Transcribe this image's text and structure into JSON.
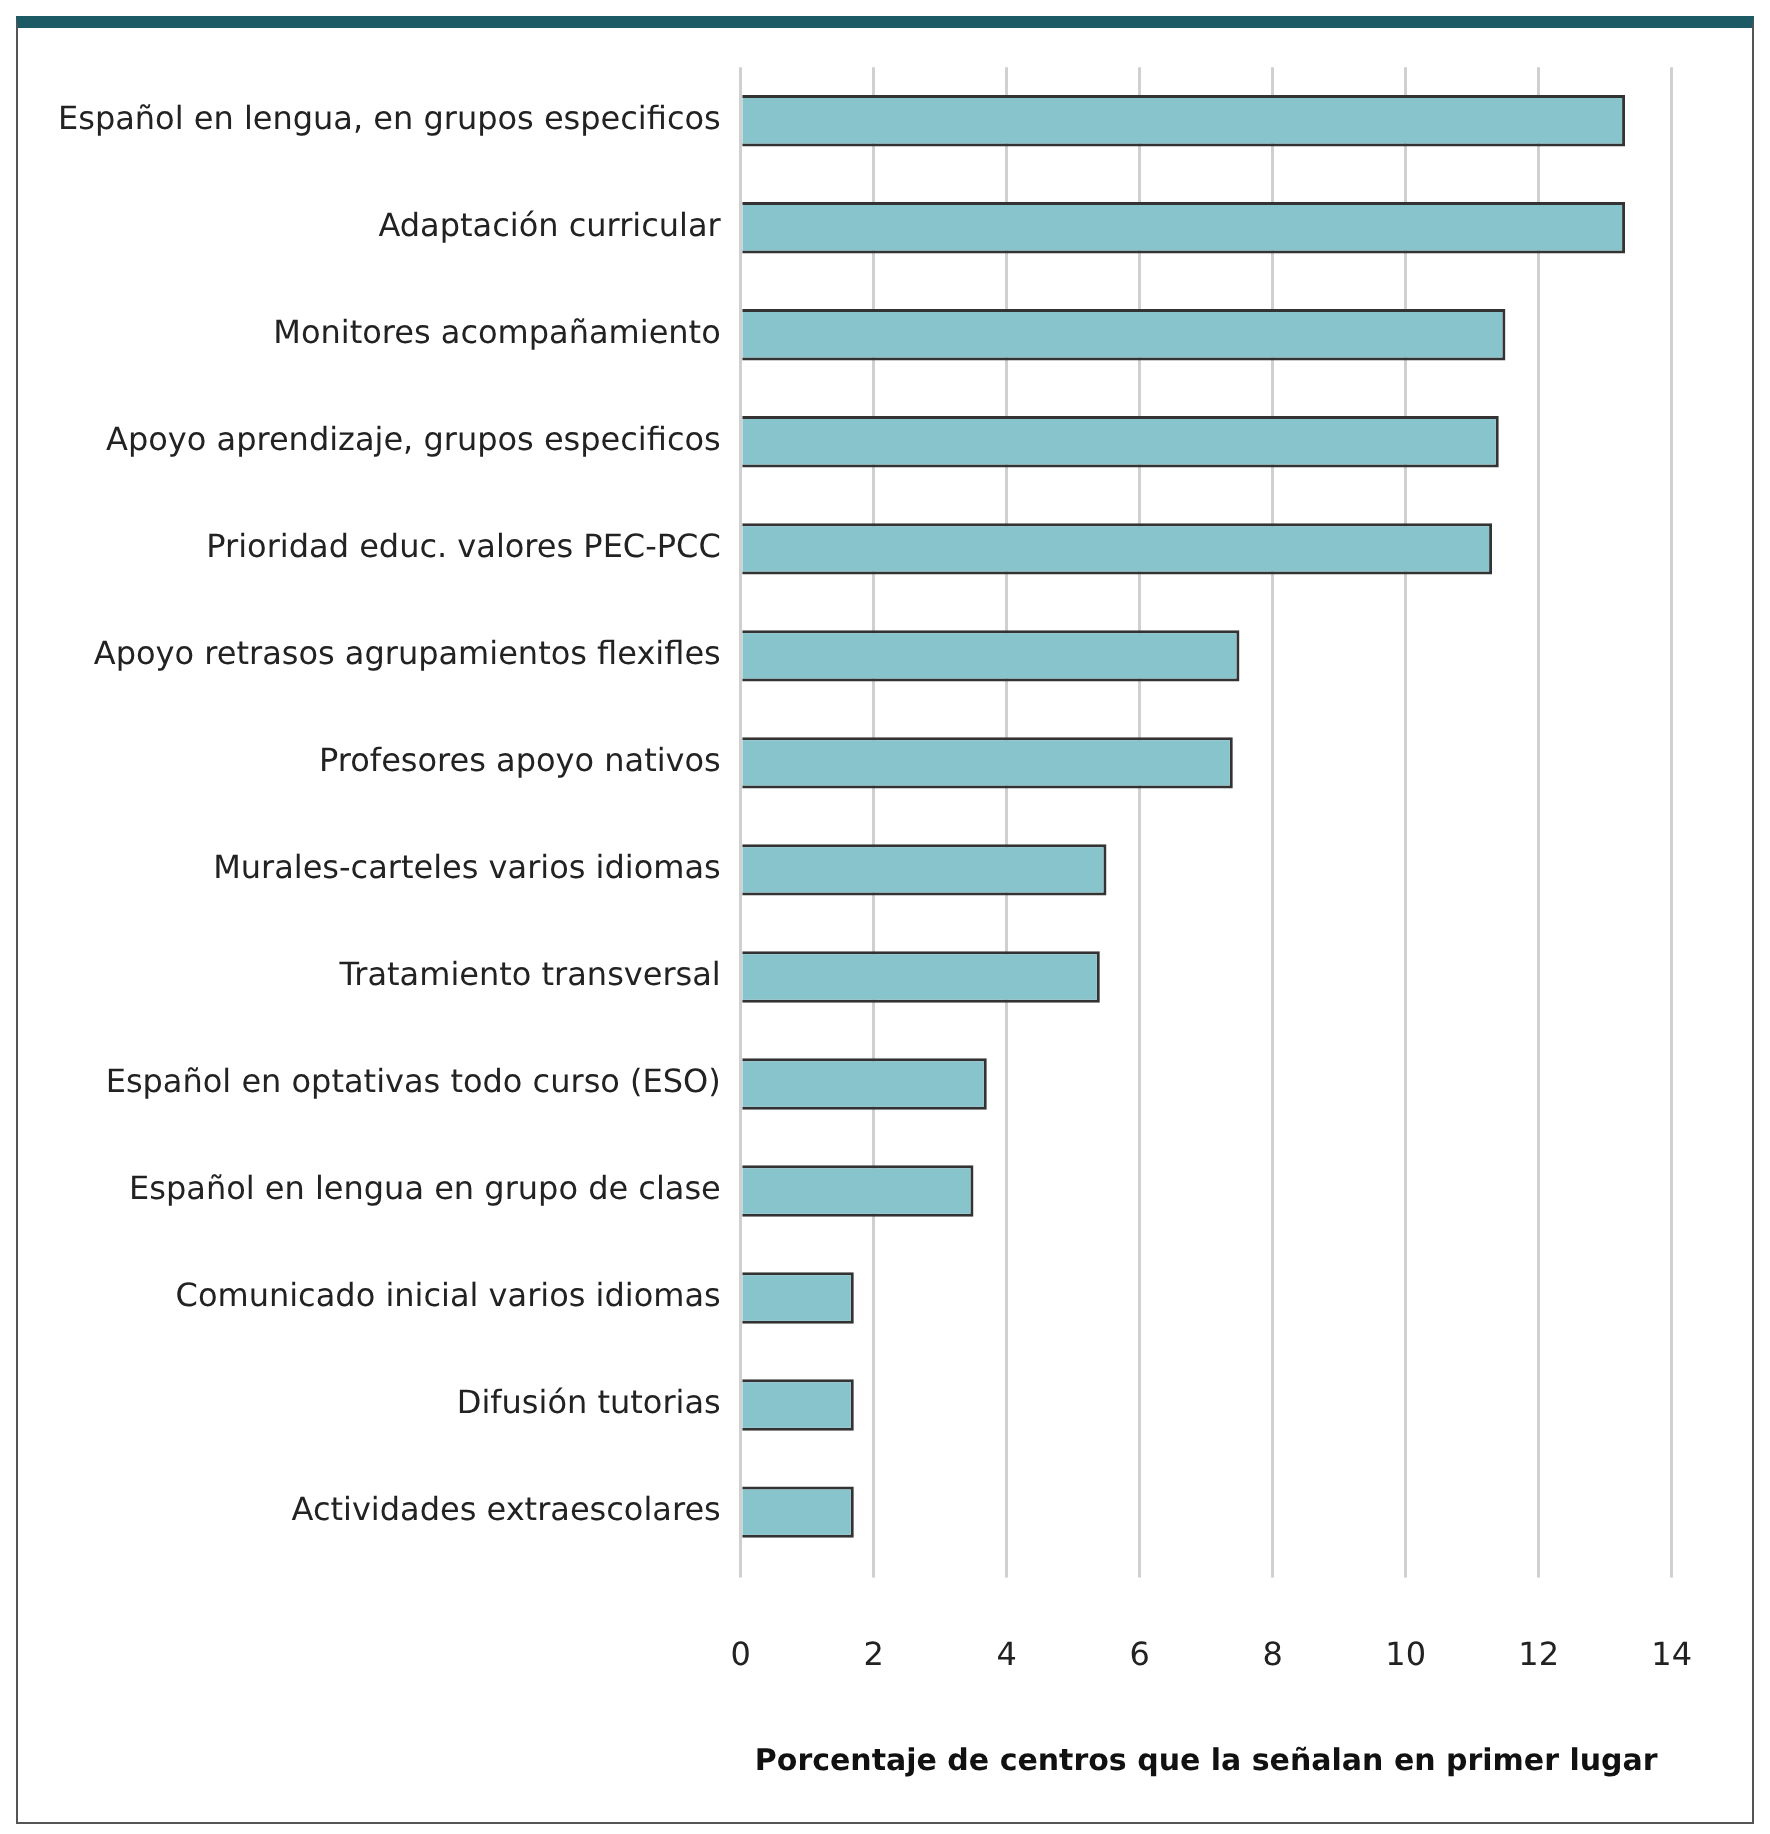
{
  "chart_data": {
    "type": "bar",
    "orientation": "horizontal",
    "xlabel": "Porcentaje de centros que la señalan en primer lugar",
    "categories": [
      "Español en lengua, en grupos especificos",
      "Adaptación curricular",
      "Monitores acompañamiento",
      "Apoyo aprendizaje, grupos especificos",
      "Prioridad educ. valores PEC-PCC",
      "Apoyo retrasos agrupamientos flexifles",
      "Profesores apoyo nativos",
      "Murales-carteles varios idiomas",
      "Tratamiento transversal",
      "Español en optativas todo curso (ESO)",
      "Español en lengua en grupo de clase",
      "Comunicado inicial varios idiomas",
      "Difusión tutorias",
      "Actividades extraescolares"
    ],
    "values": [
      13.3,
      13.3,
      11.5,
      11.4,
      11.3,
      7.5,
      7.4,
      5.5,
      5.4,
      3.7,
      3.5,
      1.7,
      1.7,
      1.7
    ],
    "color": "#88c4cc",
    "xlim": [
      0,
      14
    ],
    "xticks": [
      0,
      2,
      4,
      6,
      8,
      10,
      12,
      14
    ],
    "grid": "x",
    "legend": false
  }
}
